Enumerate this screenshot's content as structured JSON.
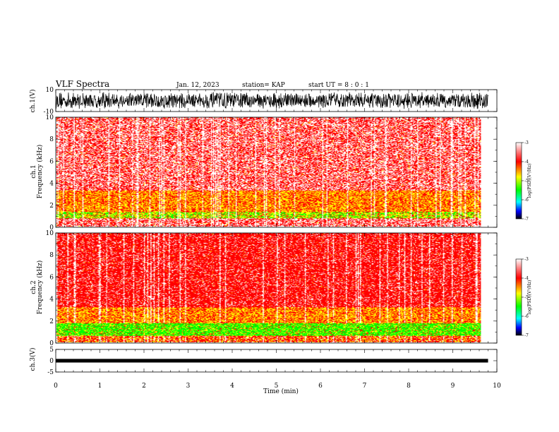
{
  "header": {
    "title": "VLF Spectra",
    "date": "Jan. 12, 2023",
    "station": "station= KAP",
    "start": "start  UT  =   8  : 0  : 1"
  },
  "colors": {
    "background": "#ffffff",
    "axes": "#000000",
    "spectro_white": "#ffffff",
    "spectro_red": "#ff0000",
    "spectro_yellow": "#ffff00",
    "spectro_green": "#00ff00",
    "spectro_blue": "#0000ff"
  },
  "chart_data": [
    {
      "type": "line",
      "name": "ch1-waveform",
      "ylabel": "ch.1(V)",
      "ylim": [
        -10,
        10
      ],
      "yticks": [
        "10",
        "-10"
      ],
      "xlim": [
        0,
        10
      ],
      "x_end": 9.8,
      "note_visible": "dense noisy waveform spanning roughly -8 to 8 V"
    },
    {
      "type": "heatmap",
      "name": "ch1-spectrogram",
      "ylabel": "ch.1\nFrequency (kHz)",
      "ylim": [
        0,
        10
      ],
      "yticks": [
        "0",
        "2",
        "4",
        "6",
        "8",
        "10"
      ],
      "xlim": [
        0,
        10
      ],
      "x_end": 9.8,
      "bands": [
        {
          "from": 0,
          "to": 0.8,
          "level": "red-white"
        },
        {
          "from": 0.8,
          "to": 1.4,
          "level": "yellow-green"
        },
        {
          "from": 1.4,
          "to": 3.3,
          "level": "yellow-red"
        },
        {
          "from": 3.3,
          "to": 10,
          "level": "red-white"
        }
      ],
      "colorbar": {
        "label": "log(PSD)(V²/Hz)",
        "ticks": [
          "-3",
          "-4",
          "-5",
          "-6",
          "-7"
        ],
        "range": [
          -7,
          -3
        ]
      }
    },
    {
      "type": "heatmap",
      "name": "ch2-spectrogram",
      "ylabel": "ch.2\nFrequency (kHz)",
      "ylim": [
        0,
        10
      ],
      "yticks": [
        "0",
        "2",
        "4",
        "6",
        "8",
        "10"
      ],
      "xlim": [
        0,
        10
      ],
      "x_end": 9.8,
      "bands": [
        {
          "from": 0,
          "to": 0.6,
          "level": "red-yellow"
        },
        {
          "from": 0.6,
          "to": 1.8,
          "level": "green"
        },
        {
          "from": 1.8,
          "to": 3.2,
          "level": "yellow-red"
        },
        {
          "from": 3.2,
          "to": 10,
          "level": "red"
        }
      ],
      "colorbar": {
        "label": "log(PSD)(V²/Hz)",
        "ticks": [
          "-3",
          "-4",
          "-5",
          "-6",
          "-7"
        ],
        "range": [
          -7,
          -3
        ]
      }
    },
    {
      "type": "line",
      "name": "ch3-waveform",
      "ylabel": "ch.3(V)",
      "ylim": [
        -5,
        5
      ],
      "yticks": [
        "5",
        "0",
        "-5"
      ],
      "xlim": [
        0,
        10
      ],
      "x_end": 9.8,
      "level_band": [
        -0.8,
        0.8
      ]
    }
  ],
  "xaxis": {
    "label": "Time  (min)",
    "ticks": [
      "0",
      "1",
      "2",
      "3",
      "4",
      "5",
      "6",
      "7",
      "8",
      "9",
      "10"
    ]
  }
}
